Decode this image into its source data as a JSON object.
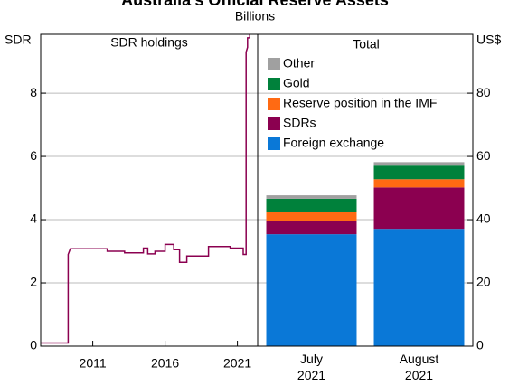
{
  "title": "Australia's Official Reserve Assets",
  "subtitle": "Billions",
  "chart_data": [
    {
      "type": "line",
      "panel_title": "SDR holdings",
      "y_label": "SDR",
      "color": "#8b0050",
      "x": [
        2007.4,
        2009.3,
        2009.3,
        2009.45,
        2012.0,
        2012.0,
        2013.2,
        2013.2,
        2014.5,
        2014.5,
        2014.8,
        2014.8,
        2015.3,
        2015.3,
        2016.0,
        2016.0,
        2016.6,
        2016.6,
        2017.0,
        2017.0,
        2017.5,
        2017.5,
        2019.0,
        2019.0,
        2020.5,
        2020.5,
        2021.4,
        2021.4,
        2021.6,
        2021.6,
        2021.7,
        2021.7,
        2021.85,
        2021.85
      ],
      "values": [
        0.1,
        0.1,
        2.9,
        3.08,
        3.08,
        3.0,
        3.0,
        2.95,
        2.95,
        3.1,
        3.1,
        2.92,
        2.92,
        3.0,
        3.0,
        3.22,
        3.22,
        3.05,
        3.05,
        2.65,
        2.65,
        2.85,
        2.85,
        3.15,
        3.15,
        3.1,
        3.1,
        2.9,
        2.9,
        9.3,
        9.45,
        9.75,
        9.75,
        9.85
      ],
      "xlim": [
        2007.4,
        2022.4
      ],
      "xticks": [
        2011,
        2016,
        2021
      ],
      "ylim": [
        0,
        9.86
      ],
      "yticks": [
        0,
        2,
        4,
        6,
        8
      ],
      "grid": true
    },
    {
      "type": "bar",
      "stacked": true,
      "panel_title": "Total",
      "y_label": "US$",
      "legend": "upper center",
      "categories": [
        "July 2021",
        "August 2021"
      ],
      "series": [
        {
          "name": "Foreign exchange",
          "color": "#0a78d7",
          "values": [
            35.4,
            37.1
          ]
        },
        {
          "name": "SDRs",
          "color": "#8b0050",
          "values": [
            4.3,
            13.1
          ]
        },
        {
          "name": "Reserve position in the IMF",
          "color": "#ff6a13",
          "values": [
            2.6,
            2.6
          ]
        },
        {
          "name": "Gold",
          "color": "#00813b",
          "values": [
            4.3,
            4.3
          ]
        },
        {
          "name": "Other",
          "color": "#a0a0a0",
          "values": [
            1.1,
            1.1
          ]
        }
      ],
      "ylim": [
        0,
        98.6
      ],
      "yticks": [
        0,
        20,
        40,
        60,
        80
      ],
      "grid": true
    }
  ]
}
